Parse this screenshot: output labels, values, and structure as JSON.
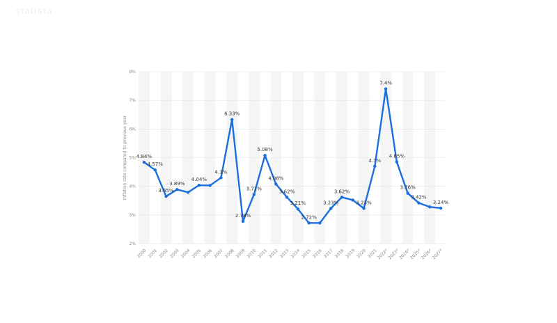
{
  "watermark": "statista",
  "chart_data": {
    "type": "line",
    "title": "",
    "xlabel": "",
    "ylabel": "Inflation rate compared to previous year",
    "ylim": [
      2,
      8
    ],
    "yticks": [
      "2%",
      "3%",
      "4%",
      "5%",
      "6%",
      "7%",
      "8%"
    ],
    "grid": true,
    "color": "#1a6fdf",
    "categories": [
      "2000",
      "2001",
      "2002",
      "2003",
      "2004",
      "2005",
      "2006",
      "2007",
      "2008",
      "2009",
      "2010",
      "2011",
      "2012",
      "2013",
      "2014",
      "2015",
      "2016",
      "2017",
      "2018",
      "2019",
      "2020",
      "2021",
      "2022*",
      "2023*",
      "2024*",
      "2025*",
      "2026*",
      "2027*"
    ],
    "series": [
      {
        "values": [
          4.84,
          4.57,
          3.65,
          3.89,
          3.79,
          4.04,
          4.03,
          4.3,
          6.33,
          2.78,
          3.71,
          5.08,
          4.08,
          3.62,
          3.21,
          2.72,
          2.72,
          3.23,
          3.62,
          3.52,
          3.23,
          4.7,
          7.4,
          4.85,
          3.76,
          3.42,
          3.28,
          3.24
        ],
        "labels": [
          "4.84%",
          "4.57%",
          "3.65%",
          "3.89%",
          "",
          "4.04%",
          "",
          "4.3%",
          "6.33%",
          "2.78%",
          "3.71%",
          "5.08%",
          "4.08%",
          "3.62%",
          "3.21%",
          "2.72%",
          "",
          "3.23%",
          "3.62%",
          "",
          "3.23%",
          "4.7%",
          "7.4%",
          "4.85%",
          "3.76%",
          "3.42%",
          "",
          "3.24%"
        ]
      }
    ]
  }
}
